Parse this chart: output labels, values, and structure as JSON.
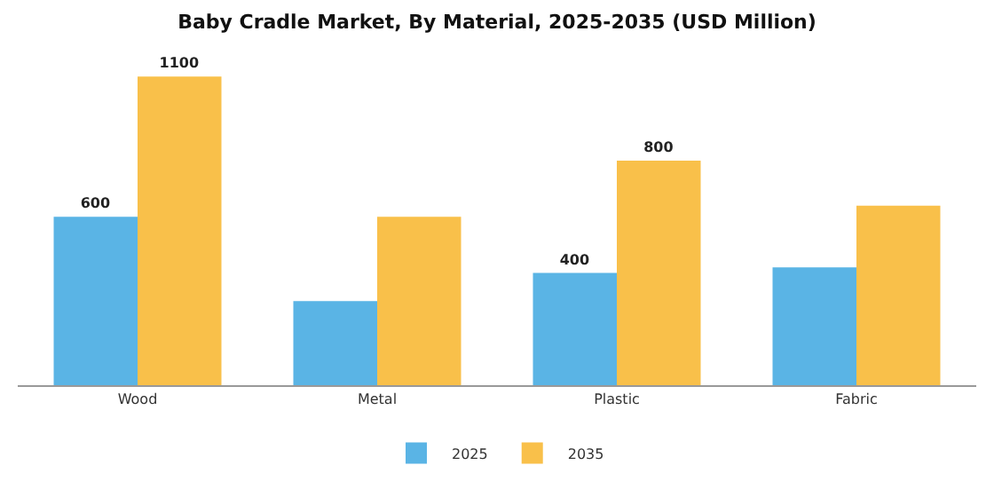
{
  "chart_data": {
    "type": "bar",
    "title": "Baby Cradle Market, By Material, 2025-2035 (USD Million)",
    "categories": [
      "Wood",
      "Metal",
      "Plastic",
      "Fabric"
    ],
    "series": [
      {
        "name": "2025",
        "color": "#5ab4e5",
        "values": [
          600,
          300,
          400,
          420
        ],
        "value_labels": [
          "600",
          null,
          "400",
          null
        ]
      },
      {
        "name": "2035",
        "color": "#f9c04a",
        "values": [
          1100,
          600,
          800,
          640
        ],
        "value_labels": [
          "1100",
          null,
          "800",
          null
        ]
      }
    ],
    "legend": "bottom",
    "tick_labels": "x"
  }
}
